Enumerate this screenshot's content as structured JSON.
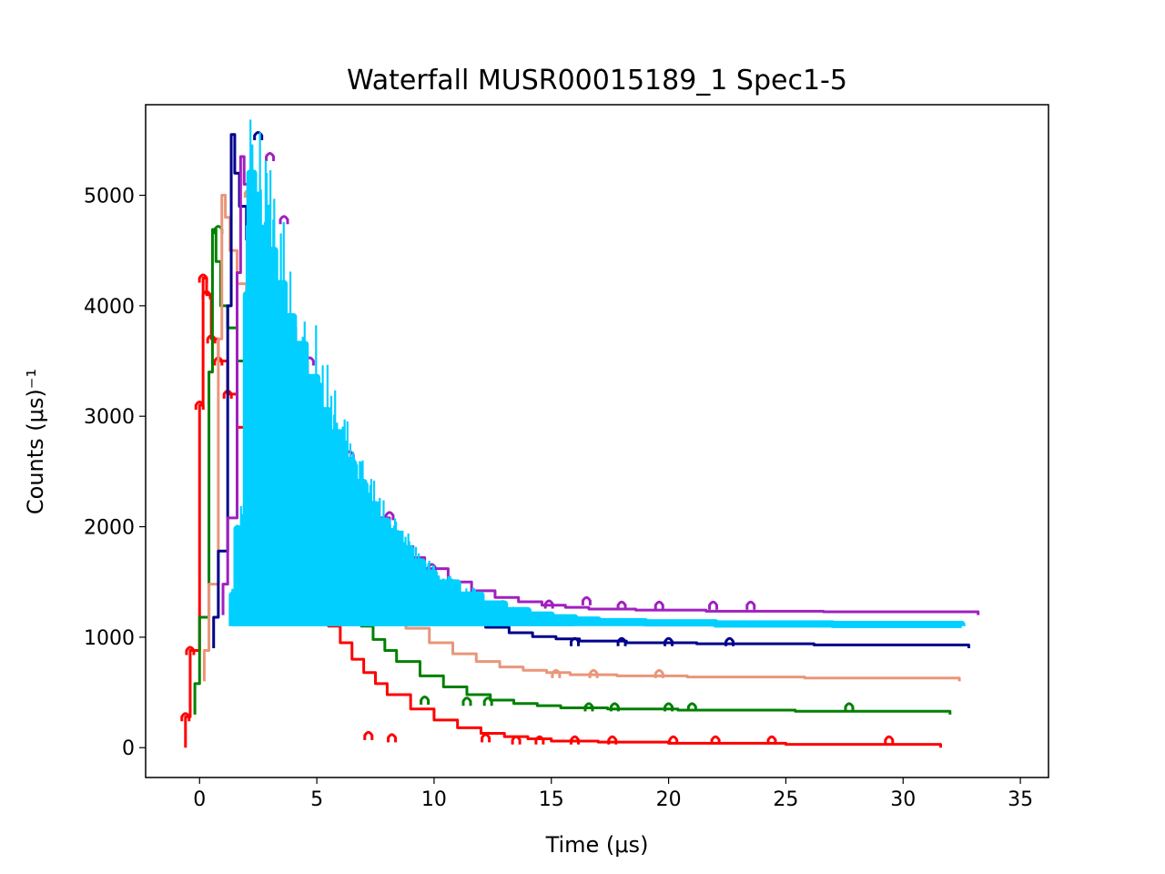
{
  "chart_data": {
    "type": "line",
    "subtype": "step-waterfall",
    "title": "Waterfall MUSR00015189_1 Spec1-5",
    "xlabel": "Time (μs)",
    "ylabel": "Counts (μs)⁻¹",
    "xlim": [
      -2.3,
      36.2
    ],
    "ylim": [
      -270,
      5820
    ],
    "xticks": [
      0,
      5,
      10,
      15,
      20,
      25,
      30,
      35
    ],
    "yticks": [
      0,
      1000,
      2000,
      3000,
      4000,
      5000
    ],
    "xtick_labels": [
      "0",
      "5",
      "10",
      "15",
      "20",
      "25",
      "30",
      "35"
    ],
    "ytick_labels": [
      "0",
      "1000",
      "2000",
      "3000",
      "4000",
      "5000"
    ],
    "grid": false,
    "legend": "none",
    "series": [
      {
        "color": "#ff0000",
        "x_offset": 0.0,
        "y_offset": 0,
        "x": [
          -0.6,
          -0.4,
          0.0,
          0.15,
          0.3,
          0.5,
          0.8,
          1.2,
          1.6,
          2.0,
          2.5,
          3.0,
          3.5,
          4.0,
          4.5,
          5.0,
          5.5,
          6.0,
          6.5,
          7.0,
          7.5,
          8.0,
          9.0,
          10.0,
          11.0,
          12.0,
          13.0,
          14.0,
          15.0,
          17.0,
          20.0,
          25.0,
          31.6
        ],
        "y": [
          280,
          880,
          3100,
          4250,
          4100,
          3700,
          3500,
          3200,
          2900,
          2700,
          2400,
          2100,
          1900,
          1650,
          1450,
          1250,
          1100,
          950,
          800,
          680,
          580,
          480,
          350,
          250,
          180,
          130,
          100,
          80,
          60,
          50,
          40,
          30,
          30
        ],
        "marks": [
          [
            -0.6,
            280
          ],
          [
            -0.4,
            880
          ],
          [
            0.0,
            3100
          ],
          [
            0.15,
            4250
          ],
          [
            0.3,
            4100
          ],
          [
            0.5,
            3700
          ],
          [
            0.8,
            3500
          ],
          [
            1.2,
            3200
          ],
          [
            7.2,
            110
          ],
          [
            8.2,
            90
          ],
          [
            12.2,
            90
          ],
          [
            13.5,
            70
          ],
          [
            14.5,
            70
          ],
          [
            16.0,
            70
          ],
          [
            17.6,
            70
          ],
          [
            20.2,
            70
          ],
          [
            22.0,
            70
          ],
          [
            24.4,
            70
          ],
          [
            29.4,
            70
          ]
        ]
      },
      {
        "color": "#008000",
        "x_offset": 0.4,
        "y_offset": 300,
        "x": [
          -0.6,
          -0.4,
          0.0,
          0.15,
          0.3,
          0.5,
          0.8,
          1.2,
          1.6,
          2.0,
          2.5,
          3.0,
          3.5,
          4.0,
          4.5,
          5.0,
          5.5,
          6.0,
          6.5,
          7.0,
          7.5,
          8.0,
          9.0,
          10.0,
          11.0,
          12.0,
          13.0,
          14.0,
          15.0,
          17.0,
          20.0,
          25.0,
          31.6
        ],
        "y": [
          280,
          880,
          3100,
          4390,
          4100,
          3700,
          3500,
          3200,
          2900,
          2700,
          2400,
          2100,
          1900,
          1650,
          1450,
          1250,
          1100,
          950,
          800,
          680,
          580,
          480,
          350,
          250,
          180,
          130,
          100,
          80,
          60,
          50,
          40,
          30,
          30
        ],
        "marks": [
          [
            0.8,
            4690
          ],
          [
            9.6,
            430
          ],
          [
            11.4,
            420
          ],
          [
            12.3,
            420
          ],
          [
            16.6,
            370
          ],
          [
            17.7,
            370
          ],
          [
            20.0,
            370
          ],
          [
            21.0,
            370
          ],
          [
            27.7,
            370
          ]
        ]
      },
      {
        "color": "#e9967a",
        "x_offset": 0.8,
        "y_offset": 600,
        "x": [
          -0.6,
          -0.4,
          0.0,
          0.15,
          0.3,
          0.5,
          0.8,
          1.2,
          1.6,
          2.0,
          2.5,
          3.0,
          3.5,
          4.0,
          4.5,
          5.0,
          5.5,
          6.0,
          6.5,
          7.0,
          7.5,
          8.0,
          9.0,
          10.0,
          11.0,
          12.0,
          13.0,
          14.0,
          15.0,
          17.0,
          20.0,
          25.0,
          31.6
        ],
        "y": [
          280,
          880,
          3100,
          4400,
          4200,
          3900,
          3600,
          3300,
          3000,
          2700,
          2400,
          2100,
          1900,
          1650,
          1450,
          1250,
          1100,
          950,
          800,
          680,
          580,
          480,
          350,
          250,
          180,
          130,
          100,
          80,
          60,
          50,
          40,
          30,
          30
        ],
        "marks": [
          [
            2.1,
            5020
          ],
          [
            15.2,
            670
          ],
          [
            16.8,
            670
          ],
          [
            19.6,
            670
          ]
        ]
      },
      {
        "color": "#00008b",
        "x_offset": 1.2,
        "y_offset": 900,
        "x": [
          -0.6,
          -0.4,
          0.0,
          0.15,
          0.3,
          0.5,
          0.8,
          1.2,
          1.6,
          2.0,
          2.5,
          3.0,
          3.5,
          4.0,
          4.5,
          5.0,
          5.5,
          6.0,
          6.5,
          7.0,
          7.5,
          8.0,
          9.0,
          10.0,
          11.0,
          12.0,
          13.0,
          14.0,
          15.0,
          17.0,
          20.0,
          25.0,
          31.6
        ],
        "y": [
          280,
          880,
          3100,
          4650,
          4300,
          4000,
          3700,
          3400,
          3100,
          2800,
          2500,
          2200,
          1950,
          1700,
          1480,
          1280,
          1120,
          970,
          820,
          700,
          600,
          500,
          370,
          270,
          190,
          140,
          105,
          85,
          65,
          50,
          40,
          30,
          30
        ],
        "marks": [
          [
            2.5,
            5540
          ],
          [
            16.0,
            960
          ],
          [
            18.0,
            960
          ],
          [
            20.0,
            960
          ],
          [
            22.6,
            960
          ]
        ]
      },
      {
        "color": "#a020c0",
        "x_offset": 1.6,
        "y_offset": 1200,
        "x": [
          -0.6,
          -0.4,
          0.0,
          0.15,
          0.3,
          0.5,
          0.8,
          1.2,
          1.6,
          2.0,
          2.5,
          3.0,
          3.5,
          4.0,
          4.5,
          5.0,
          5.5,
          6.0,
          6.5,
          7.0,
          7.5,
          8.0,
          9.0,
          10.0,
          11.0,
          12.0,
          13.0,
          14.0,
          15.0,
          17.0,
          20.0,
          25.0,
          31.6
        ],
        "y": [
          280,
          880,
          3100,
          4150,
          3900,
          3600,
          3400,
          3150,
          2800,
          2600,
          2300,
          2000,
          1800,
          1550,
          1350,
          1150,
          1000,
          880,
          750,
          620,
          520,
          420,
          300,
          220,
          160,
          120,
          90,
          70,
          55,
          45,
          35,
          30,
          30
        ],
        "marks": [
          [
            3.0,
            5350
          ],
          [
            3.6,
            4780
          ],
          [
            4.7,
            3500
          ],
          [
            6.4,
            2650
          ],
          [
            8.1,
            2100
          ],
          [
            9.9,
            1630
          ],
          [
            14.9,
            1300
          ],
          [
            16.5,
            1330
          ],
          [
            18.0,
            1290
          ],
          [
            19.6,
            1290
          ],
          [
            21.9,
            1290
          ],
          [
            23.5,
            1290
          ]
        ]
      },
      {
        "color": "#00cfff",
        "x_offset": 2.0,
        "y_offset": 1100,
        "fill": true,
        "x": [
          -0.6,
          -0.4,
          0.0,
          0.15,
          0.3,
          0.5,
          0.8,
          1.2,
          1.6,
          2.0,
          2.5,
          3.0,
          3.5,
          4.0,
          4.5,
          5.0,
          5.5,
          6.0,
          6.5,
          7.0,
          7.5,
          8.0,
          9.0,
          10.0,
          11.0,
          12.0,
          13.0,
          14.0,
          15.0,
          17.0,
          20.0,
          25.0,
          30.5
        ],
        "y": [
          280,
          880,
          3000,
          4100,
          3900,
          3600,
          3400,
          3100,
          2800,
          2550,
          2250,
          1950,
          1750,
          1500,
          1300,
          1100,
          950,
          830,
          700,
          580,
          480,
          390,
          280,
          200,
          140,
          100,
          75,
          55,
          40,
          30,
          20,
          15,
          15
        ],
        "marks": []
      }
    ]
  }
}
